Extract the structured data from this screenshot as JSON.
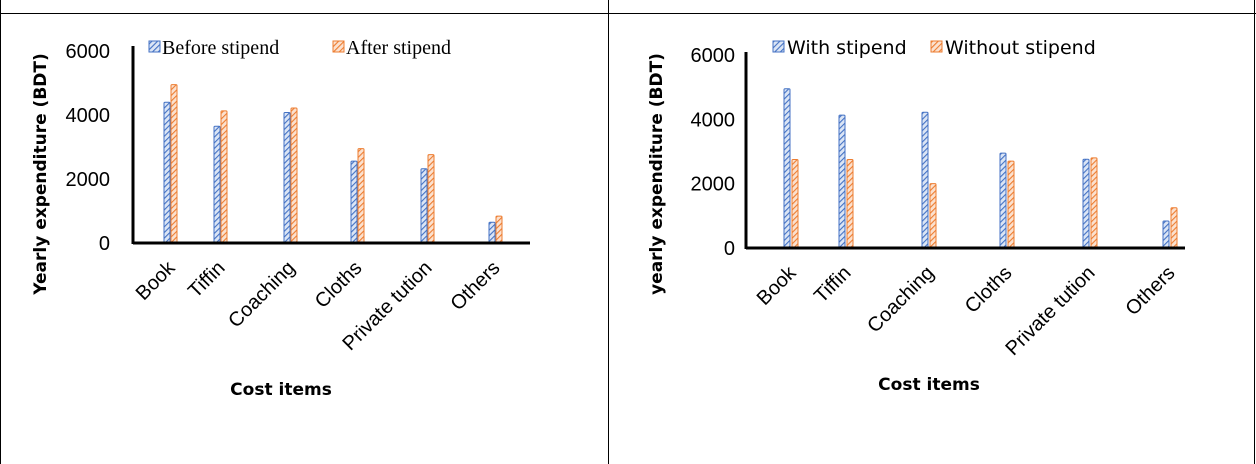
{
  "chart_data": [
    {
      "type": "bar",
      "title": "",
      "xlabel": "Cost items",
      "ylabel": "Yearly expenditure (BDT)",
      "categories": [
        "Book",
        "Tiffin",
        "Coaching",
        "Cloths",
        "Private tution",
        "Others"
      ],
      "series": [
        {
          "name": "Before stipend",
          "values": [
            4400,
            3650,
            4080,
            2560,
            2320,
            650
          ]
        },
        {
          "name": "After stipend",
          "values": [
            4950,
            4130,
            4220,
            2950,
            2760,
            840
          ]
        }
      ],
      "ylim": [
        0,
        6000
      ],
      "yticks": [
        0,
        2000,
        4000,
        6000
      ],
      "ytick_labels": [
        "0",
        "2000",
        "4000",
        "6000"
      ],
      "colors": [
        "#4472c4",
        "#ed7d31"
      ],
      "grid": false,
      "legend_position": "top"
    },
    {
      "type": "bar",
      "title": "",
      "xlabel": "Cost items",
      "ylabel": "yearly expenditure (BDT)",
      "categories": [
        "Book",
        "Tiffin",
        "Coaching",
        "Cloths",
        "Private tution",
        "Others"
      ],
      "series": [
        {
          "name": "With stipend",
          "values": [
            4950,
            4130,
            4220,
            2950,
            2760,
            840
          ]
        },
        {
          "name": "Without stipend",
          "values": [
            2750,
            2750,
            2000,
            2700,
            2800,
            1250
          ]
        }
      ],
      "ylim": [
        0,
        6000
      ],
      "yticks": [
        0,
        2000,
        4000,
        6000
      ],
      "ytick_labels": [
        "0",
        "2000",
        "4000",
        "6000"
      ],
      "colors": [
        "#4472c4",
        "#ed7d31"
      ],
      "grid": false,
      "legend_position": "top"
    }
  ]
}
